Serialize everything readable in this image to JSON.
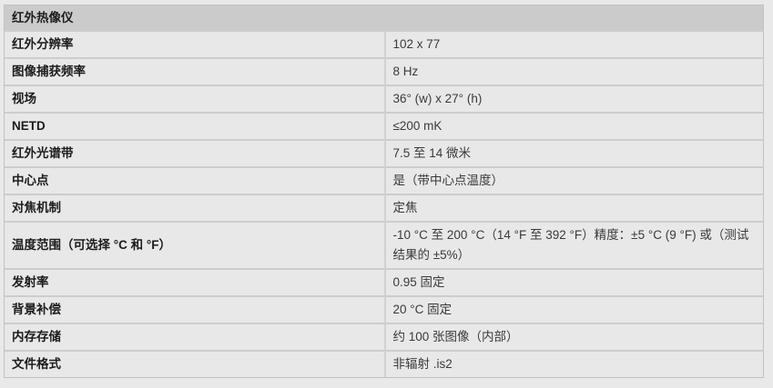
{
  "table": {
    "title": "红外热像仪",
    "rows": [
      {
        "label": "红外分辨率",
        "value": "102 x 77"
      },
      {
        "label": "图像捕获频率",
        "value": "8 Hz"
      },
      {
        "label": "视场",
        "value": "36° (w) x 27° (h)"
      },
      {
        "label": "NETD",
        "value": "≤200 mK"
      },
      {
        "label": "红外光谱带",
        "value": "7.5 至 14 微米"
      },
      {
        "label": "中心点",
        "value": "是（带中心点温度）"
      },
      {
        "label": "对焦机制",
        "value": "定焦"
      },
      {
        "label": "温度范围（可选择 °C 和 °F）",
        "value": "-10 °C 至 200 °C（14 °F 至 392 °F）精度：±5 °C (9 °F) 或（测试结果的 ±5%）"
      },
      {
        "label": "发射率",
        "value": "0.95 固定"
      },
      {
        "label": "背景补偿",
        "value": "20 °C 固定"
      },
      {
        "label": "内存存储",
        "value": "约 100 张图像（内部）"
      },
      {
        "label": "文件格式",
        "value": "非辐射 .is2"
      }
    ],
    "colors": {
      "page_bg": "#e9e9e9",
      "row_bg": "#e8e8e8",
      "header_bg": "#cbcbcb",
      "border_horizontal": "#cdcdcd",
      "border_vertical": "#d2d2d2",
      "border_outer": "#c2c2c2",
      "label_text": "#1c1c1c",
      "value_text": "#3a3a3a"
    }
  }
}
